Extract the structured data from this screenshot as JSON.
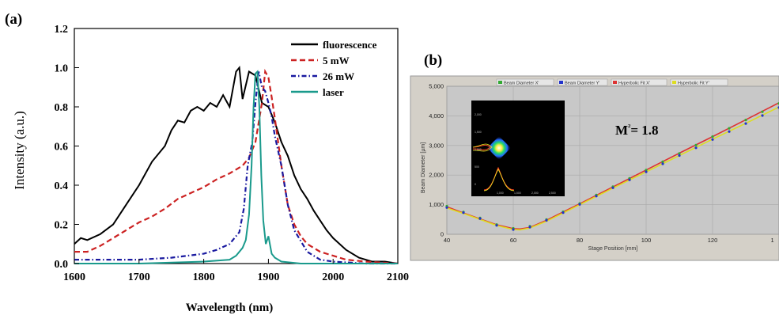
{
  "chart_data": [
    {
      "panel_label": "(a)",
      "type": "line",
      "xlabel": "Wavelength (nm)",
      "ylabel": "Intensity (a.u.)",
      "xlim": [
        1600,
        2100
      ],
      "ylim": [
        0.0,
        1.2
      ],
      "xticks": [
        "1600",
        "1700",
        "1800",
        "1900",
        "2000",
        "2100"
      ],
      "yticks": [
        "0.0",
        "0.2",
        "0.4",
        "0.6",
        "0.8",
        "1.0",
        "1.2"
      ],
      "legend_position": "top-right",
      "series": [
        {
          "name": "fluorescence",
          "color": "#000000",
          "style": "solid",
          "x": [
            1600,
            1610,
            1620,
            1640,
            1660,
            1680,
            1700,
            1720,
            1740,
            1750,
            1760,
            1770,
            1780,
            1790,
            1800,
            1810,
            1820,
            1830,
            1840,
            1850,
            1855,
            1860,
            1870,
            1880,
            1890,
            1900,
            1910,
            1920,
            1930,
            1940,
            1950,
            1960,
            1970,
            1980,
            1990,
            2000,
            2010,
            2020,
            2040,
            2060,
            2080,
            2100
          ],
          "y": [
            0.1,
            0.13,
            0.12,
            0.15,
            0.2,
            0.3,
            0.4,
            0.52,
            0.6,
            0.68,
            0.73,
            0.72,
            0.78,
            0.8,
            0.78,
            0.82,
            0.8,
            0.86,
            0.8,
            0.98,
            1.0,
            0.84,
            0.98,
            0.96,
            0.82,
            0.8,
            0.72,
            0.62,
            0.55,
            0.45,
            0.38,
            0.33,
            0.27,
            0.22,
            0.17,
            0.13,
            0.1,
            0.07,
            0.03,
            0.01,
            0.01,
            0.0
          ]
        },
        {
          "name": "5 mW",
          "color": "#cc2222",
          "style": "dashed",
          "x": [
            1600,
            1620,
            1640,
            1660,
            1680,
            1700,
            1720,
            1740,
            1760,
            1780,
            1800,
            1820,
            1840,
            1860,
            1870,
            1880,
            1890,
            1895,
            1900,
            1905,
            1910,
            1920,
            1930,
            1940,
            1950,
            1960,
            1980,
            2000,
            2020,
            2050,
            2100
          ],
          "y": [
            0.06,
            0.06,
            0.09,
            0.13,
            0.17,
            0.21,
            0.24,
            0.28,
            0.33,
            0.36,
            0.39,
            0.43,
            0.46,
            0.5,
            0.54,
            0.62,
            0.82,
            0.98,
            0.95,
            0.85,
            0.74,
            0.5,
            0.3,
            0.2,
            0.14,
            0.1,
            0.06,
            0.04,
            0.02,
            0.01,
            0.0
          ]
        },
        {
          "name": "26 mW",
          "color": "#1a1aa0",
          "style": "dashdot",
          "x": [
            1600,
            1650,
            1700,
            1750,
            1800,
            1820,
            1840,
            1855,
            1862,
            1868,
            1875,
            1880,
            1885,
            1890,
            1895,
            1900,
            1905,
            1910,
            1920,
            1930,
            1940,
            1960,
            1980,
            2000,
            2050,
            2100
          ],
          "y": [
            0.02,
            0.02,
            0.02,
            0.03,
            0.05,
            0.07,
            0.1,
            0.16,
            0.28,
            0.5,
            0.62,
            0.82,
            0.98,
            0.9,
            0.88,
            0.82,
            0.75,
            0.65,
            0.5,
            0.3,
            0.17,
            0.06,
            0.02,
            0.01,
            0.0,
            0.0
          ]
        },
        {
          "name": "laser",
          "color": "#1a9a8c",
          "style": "solid",
          "x": [
            1600,
            1700,
            1800,
            1840,
            1850,
            1860,
            1865,
            1870,
            1874,
            1877,
            1880,
            1883,
            1886,
            1889,
            1892,
            1896,
            1900,
            1905,
            1910,
            1920,
            1950,
            2000,
            2100
          ],
          "y": [
            0.0,
            0.0,
            0.01,
            0.02,
            0.04,
            0.08,
            0.12,
            0.25,
            0.5,
            0.8,
            0.97,
            0.98,
            0.8,
            0.45,
            0.22,
            0.1,
            0.14,
            0.05,
            0.03,
            0.01,
            0.0,
            0.0,
            0.0
          ]
        }
      ]
    },
    {
      "panel_label": "(b)",
      "type": "scatter",
      "xlabel": "Stage Position [mm]",
      "ylabel": "Beam Diameter [µm]",
      "xlim": [
        40,
        140
      ],
      "ylim": [
        0,
        5000
      ],
      "xticks": [
        "40",
        "60",
        "80",
        "100",
        "120",
        "1"
      ],
      "yticks": [
        "0",
        "1,000",
        "2,000",
        "3,000",
        "4,000",
        "5,000"
      ],
      "annotation": "M²= 1.8",
      "legend_position": "top",
      "series": [
        {
          "name": "Beam Diameter X'",
          "color": "#33aa33",
          "x": [
            40,
            45,
            50,
            55,
            60,
            65,
            70,
            75,
            80,
            85,
            90,
            95,
            100,
            105,
            110,
            115,
            120,
            125,
            130,
            135,
            140
          ],
          "y": [
            950,
            750,
            550,
            330,
            200,
            270,
            500,
            760,
            1040,
            1330,
            1610,
            1890,
            2170,
            2450,
            2730,
            3010,
            3300,
            3580,
            3860,
            4140,
            4420
          ]
        },
        {
          "name": "Beam Diameter Y'",
          "color": "#2233cc",
          "x": [
            40,
            45,
            50,
            55,
            60,
            65,
            70,
            75,
            80,
            85,
            90,
            95,
            100,
            105,
            110,
            115,
            120,
            125,
            130,
            135,
            140
          ],
          "y": [
            900,
            730,
            530,
            300,
            160,
            240,
            470,
            730,
            1010,
            1290,
            1570,
            1840,
            2110,
            2380,
            2660,
            2920,
            3200,
            3470,
            3740,
            4010,
            4280
          ]
        },
        {
          "name": "Hyperbolic Fit X'",
          "color": "#dd3333",
          "x": [
            40,
            45,
            50,
            55,
            60,
            62,
            65,
            70,
            75,
            80,
            90,
            100,
            110,
            120,
            130,
            140
          ],
          "y": [
            930,
            720,
            520,
            320,
            190,
            180,
            230,
            470,
            750,
            1030,
            1600,
            2170,
            2740,
            3300,
            3870,
            4440
          ]
        },
        {
          "name": "Hyperbolic Fit Y'",
          "color": "#dddd22",
          "x": [
            40,
            45,
            50,
            55,
            60,
            62,
            65,
            70,
            75,
            80,
            90,
            100,
            110,
            120,
            130,
            140
          ],
          "y": [
            890,
            700,
            500,
            300,
            160,
            150,
            210,
            440,
            720,
            1000,
            1560,
            2110,
            2660,
            3210,
            3750,
            4300
          ]
        }
      ]
    }
  ],
  "inset": {
    "yticks": [
      "2,000",
      "1,500",
      "1,000",
      "500",
      "0"
    ],
    "xticks": [
      "1,000",
      "1,500",
      "2,000",
      "2,500"
    ]
  }
}
